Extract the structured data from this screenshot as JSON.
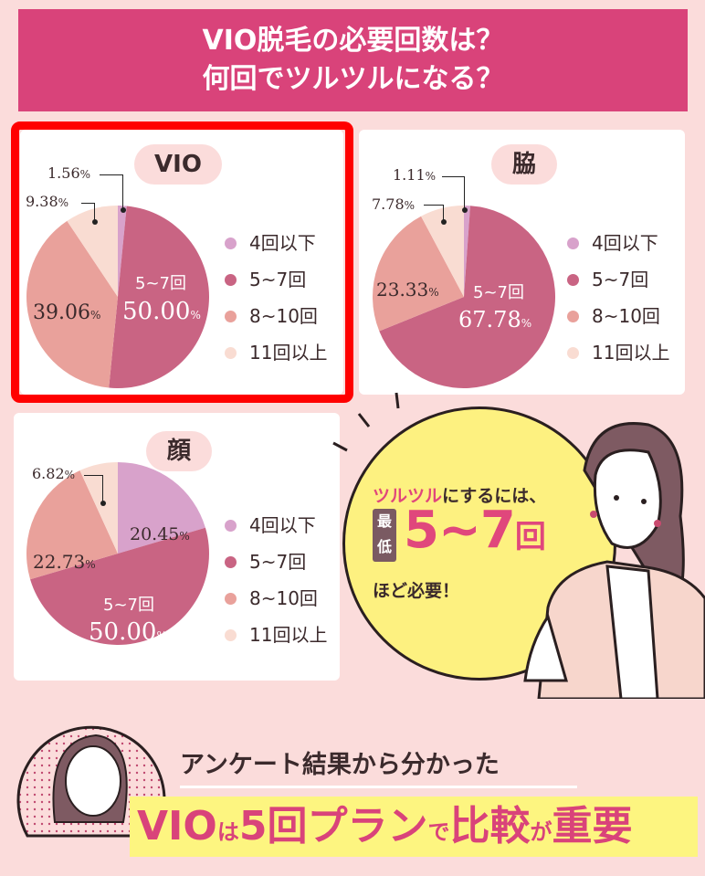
{
  "title": {
    "line1": "VIO脱毛の必要回数は？",
    "line2": "何回でツルツルになる？"
  },
  "legend": [
    "4回以下",
    "5~7回",
    "8~10回",
    "11回以上"
  ],
  "colors": [
    "#d8a2cb",
    "#c96483",
    "#e9a19b",
    "#f9dcd2"
  ],
  "chart_data": [
    {
      "type": "pie",
      "title": "VIO",
      "categories": [
        "4回以下",
        "5~7回",
        "8~10回",
        "11回以上"
      ],
      "values": [
        1.56,
        50.0,
        39.06,
        9.38
      ],
      "labels": [
        "1.56",
        "50.00",
        "39.06",
        "9.38"
      ],
      "inner_label": "5~7回",
      "legend": "right"
    },
    {
      "type": "pie",
      "title": "脇",
      "categories": [
        "4回以下",
        "5~7回",
        "8~10回",
        "11回以上"
      ],
      "values": [
        1.11,
        67.78,
        23.33,
        7.78
      ],
      "labels": [
        "1.11",
        "67.78",
        "23.33",
        "7.78"
      ],
      "inner_label": "5~7回",
      "legend": "right"
    },
    {
      "type": "pie",
      "title": "顔",
      "categories": [
        "4回以下",
        "5~7回",
        "8~10回",
        "11回以上"
      ],
      "values": [
        20.45,
        50.0,
        22.73,
        6.82
      ],
      "labels": [
        "20.45",
        "50.00",
        "22.73",
        "6.82"
      ],
      "inner_label": "5~7回",
      "legend": "right"
    }
  ],
  "pct": "%",
  "bubble": {
    "pink": "ツルツル",
    "rest": "にするには、",
    "badge1": "最",
    "badge2": "低",
    "num": "5~7",
    "unit": "回",
    "line3": "ほど必要！"
  },
  "footer": {
    "subtitle": "アンケート結果から分かった",
    "c1": "VIO",
    "c2": "は",
    "c3": "5回プラン",
    "c4": "で",
    "c5": "比較",
    "c6": "が",
    "c7": "重要"
  }
}
